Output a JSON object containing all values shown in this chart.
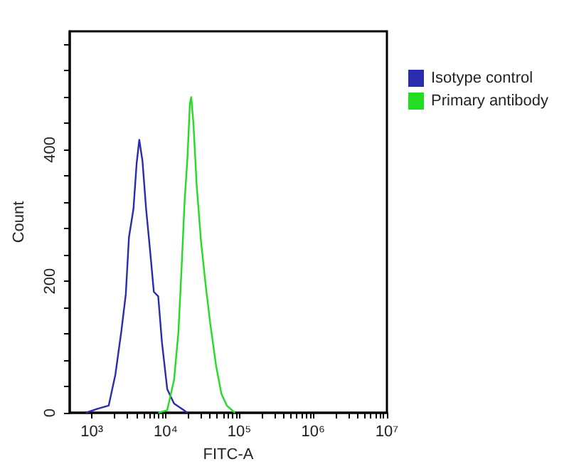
{
  "chart_data": {
    "type": "line",
    "xlabel": "FITC-A",
    "ylabel": "Count",
    "log": "x",
    "xlim": [
      500,
      10000000
    ],
    "xticks": [
      {
        "value": 1000,
        "label": "10³"
      },
      {
        "value": 2000,
        "label": null
      },
      {
        "value": 3000,
        "label": null
      },
      {
        "value": 4000,
        "label": null
      },
      {
        "value": 5000,
        "label": null
      },
      {
        "value": 6000,
        "label": null
      },
      {
        "value": 7000,
        "label": null
      },
      {
        "value": 8000,
        "label": null
      },
      {
        "value": 9000,
        "label": null
      },
      {
        "value": 10000,
        "label": "10⁴"
      },
      {
        "value": 20000,
        "label": null
      },
      {
        "value": 30000,
        "label": null
      },
      {
        "value": 40000,
        "label": null
      },
      {
        "value": 50000,
        "label": null
      },
      {
        "value": 60000,
        "label": null
      },
      {
        "value": 70000,
        "label": null
      },
      {
        "value": 80000,
        "label": null
      },
      {
        "value": 90000,
        "label": null
      },
      {
        "value": 100000,
        "label": "10⁵"
      },
      {
        "value": 200000,
        "label": null
      },
      {
        "value": 300000,
        "label": null
      },
      {
        "value": 400000,
        "label": null
      },
      {
        "value": 500000,
        "label": null
      },
      {
        "value": 600000,
        "label": null
      },
      {
        "value": 700000,
        "label": null
      },
      {
        "value": 800000,
        "label": null
      },
      {
        "value": 900000,
        "label": null
      },
      {
        "value": 1000000,
        "label": "10⁶"
      },
      {
        "value": 2000000,
        "label": null
      },
      {
        "value": 3000000,
        "label": null
      },
      {
        "value": 4000000,
        "label": null
      },
      {
        "value": 5000000,
        "label": null
      },
      {
        "value": 6000000,
        "label": null
      },
      {
        "value": 7000000,
        "label": null
      },
      {
        "value": 8000000,
        "label": null
      },
      {
        "value": 9000000,
        "label": null
      },
      {
        "value": 10000000,
        "label": "10⁷"
      }
    ],
    "ylim": [
      0,
      580
    ],
    "yticks": [
      0,
      {
        "value": 40,
        "label": null
      },
      {
        "value": 80,
        "label": null
      },
      {
        "value": 120,
        "label": null
      },
      {
        "value": 160,
        "label": null
      },
      200,
      {
        "value": 240,
        "label": null
      },
      {
        "value": 280,
        "label": null
      },
      {
        "value": 320,
        "label": null
      },
      {
        "value": 360,
        "label": null
      },
      400,
      {
        "value": 440,
        "label": null
      },
      {
        "value": 480,
        "label": null
      },
      {
        "value": 520,
        "label": null
      },
      {
        "value": 560,
        "label": null
      }
    ],
    "grid": false,
    "legend": "top right",
    "marker": "none",
    "line_style": "solid",
    "series": [
      {
        "name": "Isotype control",
        "color": "#2b2bb0",
        "x": [
          830,
          1190,
          1690,
          2080,
          2500,
          2880,
          3180,
          3660,
          4040,
          4390,
          4850,
          5430,
          6170,
          6910,
          7930,
          8890,
          10500,
          13000,
          16100,
          19800
        ],
        "values": [
          0,
          6,
          11,
          58,
          123,
          180,
          267,
          310,
          379,
          415,
          383,
          310,
          245,
          184,
          177,
          108,
          36,
          14,
          7,
          0
        ]
      },
      {
        "name": "Primary antibody",
        "color": "#22dd22",
        "x": [
          7930,
          10500,
          13000,
          14900,
          16500,
          18000,
          19800,
          21300,
          22200,
          23800,
          26300,
          30200,
          34800,
          40100,
          48200,
          57000,
          67500,
          86900
        ],
        "values": [
          0,
          4,
          50,
          123,
          224,
          318,
          390,
          470,
          480,
          440,
          347,
          260,
          195,
          137,
          72,
          29,
          11,
          0
        ]
      }
    ]
  }
}
